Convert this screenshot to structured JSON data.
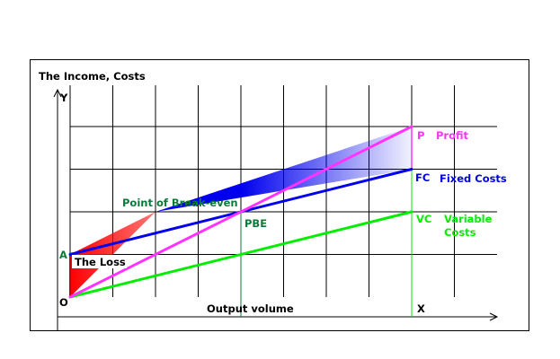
{
  "chart_data": {
    "type": "line",
    "title": "",
    "ylabel": "The Income, Costs",
    "xlabel": "Output volume",
    "grid": true,
    "axis_marks": {
      "y": "Y",
      "x": "X",
      "origin": "O"
    },
    "points": {
      "A": "A",
      "PBE": "PBE",
      "P": "P",
      "FC": "FC",
      "VC": "VC"
    },
    "annotations": {
      "break_even": "Point of Break-even",
      "loss": "The Loss",
      "profit": "Profit",
      "fixed_costs": "Fixed Costs",
      "variable_costs_line1": "Variable",
      "variable_costs_line2": "Costs"
    },
    "series": [
      {
        "name": "Profit",
        "x": [
          0,
          8
        ],
        "y": [
          0,
          4
        ]
      },
      {
        "name": "Fixed Costs",
        "x": [
          0,
          8
        ],
        "y": [
          1,
          3
        ]
      },
      {
        "name": "Variable Costs",
        "x": [
          0,
          8
        ],
        "y": [
          0,
          2
        ]
      }
    ],
    "colors": {
      "income": "#ff33ff",
      "fixed": "#0000ee",
      "variable": "#00ee00",
      "labels_dark": "#0a7a3a",
      "loss": "#ff0000",
      "profit_fill": "#2233ee"
    }
  }
}
